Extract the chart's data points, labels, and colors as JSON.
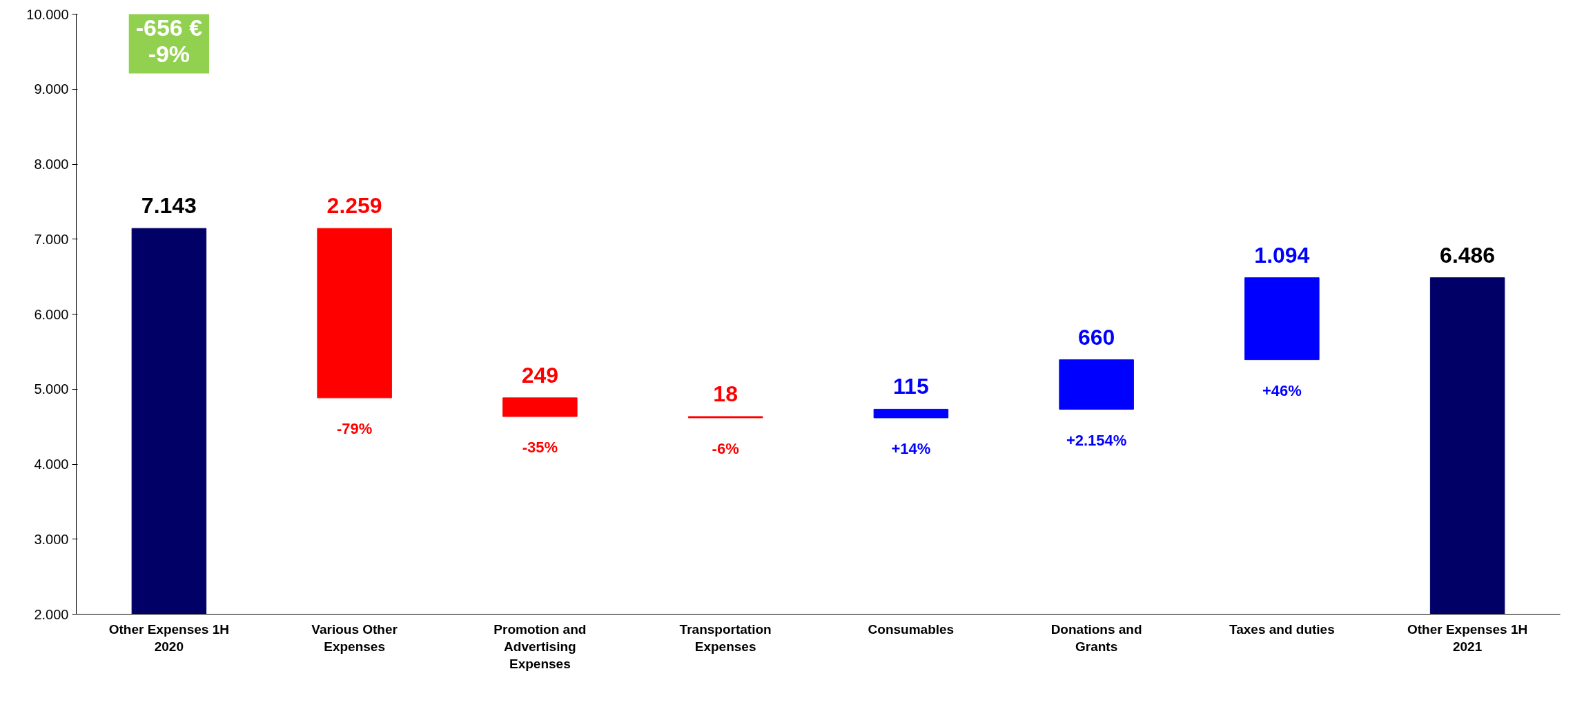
{
  "chart_data": {
    "type": "bar",
    "categories": [
      "Other Expenses 1H 2020",
      "Various Other Expenses",
      "Promotion and Advertising Expenses",
      "Transportation Expenses",
      "Consumables",
      "Donations and Grants",
      "Taxes and duties",
      "Other Expenses 1H 2021"
    ],
    "values": [
      7143,
      -2259,
      -249,
      -18,
      115,
      660,
      1094,
      6486
    ],
    "base": [
      0,
      7143,
      4884,
      4635,
      4617,
      4732,
      5392,
      0
    ],
    "colors": [
      "#000066",
      "#ff0000",
      "#ff0000",
      "#ff0000",
      "#0000ff",
      "#0000ff",
      "#0000ff",
      "#000066"
    ],
    "value_labels": [
      "7.143",
      "2.259",
      "249",
      "18",
      "115",
      "660",
      "1.094",
      "6.486"
    ],
    "ylim": [
      2000,
      10000
    ],
    "yticks": [
      {
        "value": 2000,
        "label": "2.000"
      },
      {
        "value": 3000,
        "label": "3.000"
      },
      {
        "value": 4000,
        "label": "4.000"
      },
      {
        "value": 5000,
        "label": "5.000"
      },
      {
        "value": 6000,
        "label": "6.000"
      },
      {
        "value": 7000,
        "label": "7.000"
      },
      {
        "value": 8000,
        "label": "8.000"
      },
      {
        "value": 9000,
        "label": "9.000"
      },
      {
        "value": 10000,
        "label": "10.000"
      }
    ],
    "grid": false,
    "annotations": [
      "-656 €\n-9%",
      "-79%",
      "-35%",
      "-6%",
      "+14%",
      "+2.154%",
      "+46%"
    ]
  }
}
